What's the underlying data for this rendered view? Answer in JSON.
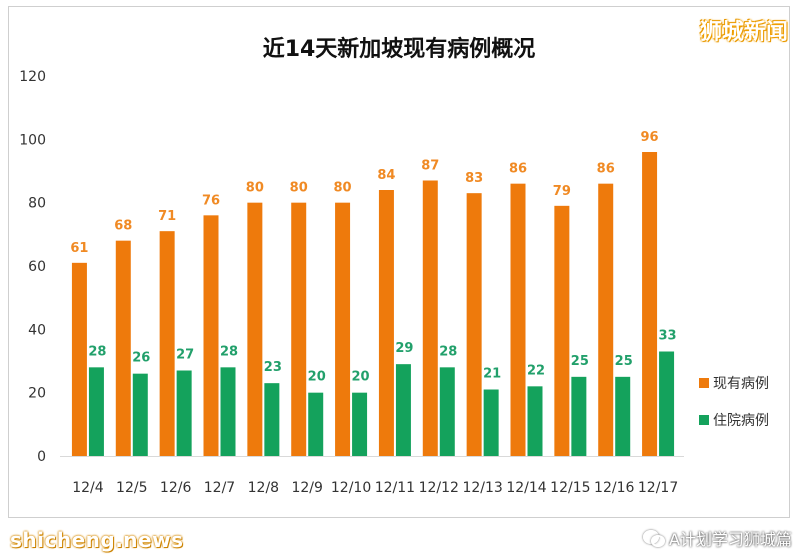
{
  "brand": {
    "top_right_label": "狮城新闻",
    "bottom_left_label": "shicheng.news",
    "bottom_right_label": "A计划学习狮城篇"
  },
  "colors": {
    "series1": "#ee7a0c",
    "series2": "#14a25c",
    "label1": "#f08a24",
    "label2": "#22a06b",
    "axis_text": "#333333",
    "title": "#111111"
  },
  "icons": {
    "wechat": "wechat-icon"
  },
  "chart_data": {
    "type": "bar",
    "title": "近14天新加坡现有病例概况",
    "xlabel": "",
    "ylabel": "",
    "ylim": [
      0,
      120
    ],
    "yticks": [
      0,
      20,
      40,
      60,
      80,
      100,
      120
    ],
    "grid": false,
    "legend_position": "right",
    "categories": [
      "12/4",
      "12/5",
      "12/6",
      "12/7",
      "12/8",
      "12/9",
      "12/10",
      "12/11",
      "12/12",
      "12/13",
      "12/14",
      "12/15",
      "12/16",
      "12/17"
    ],
    "series": [
      {
        "name": "现有病例",
        "values": [
          61,
          68,
          71,
          76,
          80,
          80,
          80,
          84,
          87,
          83,
          86,
          79,
          86,
          96
        ]
      },
      {
        "name": "住院病例",
        "values": [
          28,
          26,
          27,
          28,
          23,
          20,
          20,
          29,
          28,
          21,
          22,
          25,
          25,
          33
        ]
      }
    ]
  }
}
